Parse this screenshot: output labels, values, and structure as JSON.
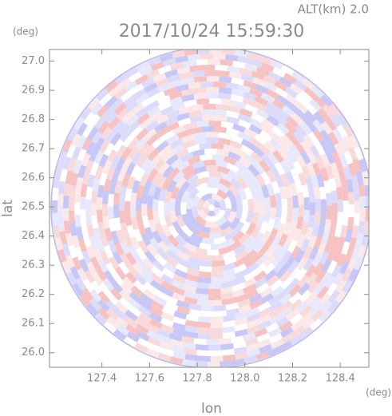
{
  "chart_data": {
    "type": "radar-image",
    "title": "2017/10/24 15:59:30",
    "annotation": "ALT(km) 2.0",
    "y_unit": "(deg)",
    "x_unit": "(deg)",
    "xlabel": "lon",
    "ylabel": "lat",
    "xlim": [
      127.18,
      128.52
    ],
    "ylim": [
      25.95,
      27.04
    ],
    "xticks": [
      127.4,
      127.6,
      127.8,
      {
        "value": 128.0,
        "label": "128.0"
      },
      128.2,
      128.4
    ],
    "yticks": [
      {
        "value": 26.0,
        "label": "26.0"
      },
      26.1,
      26.2,
      26.3,
      26.4,
      26.5,
      26.6,
      26.7,
      26.8,
      26.9,
      {
        "value": 27.0,
        "label": "27.0"
      }
    ]
  }
}
